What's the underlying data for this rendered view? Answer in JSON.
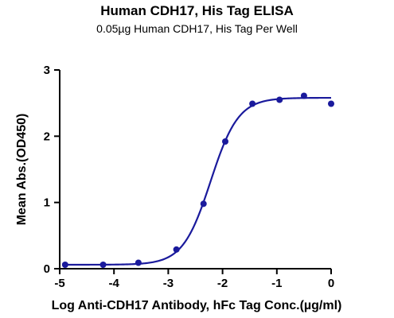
{
  "chart_data": {
    "type": "scatter",
    "title": "Human CDH17, His Tag ELISA",
    "subtitle": "0.05µg Human CDH17, His Tag Per Well",
    "xlabel": "Log Anti-CDH17 Antibody, hFc Tag Conc.(µg/ml)",
    "ylabel": "Mean Abs.(OD450)",
    "xlim": [
      -5,
      0
    ],
    "ylim": [
      0,
      3
    ],
    "x_ticks": [
      "-5",
      "-4",
      "-3",
      "-2",
      "-1",
      "0"
    ],
    "y_ticks": [
      "0",
      "1",
      "2",
      "3"
    ],
    "grid": false,
    "series": [
      {
        "x": [
          -4.9,
          -4.2,
          -3.55,
          -2.85,
          -2.35,
          -1.95,
          -1.45,
          -0.95,
          -0.5,
          0.0
        ],
        "y": [
          0.06,
          0.06,
          0.09,
          0.29,
          0.98,
          1.92,
          2.49,
          2.55,
          2.61,
          2.49
        ],
        "fit": {
          "model": "4PL",
          "bottom": 0.06,
          "top": 2.58,
          "logEC50": -2.22,
          "hill": 1.7
        },
        "color": "#1a1a9c"
      }
    ]
  }
}
